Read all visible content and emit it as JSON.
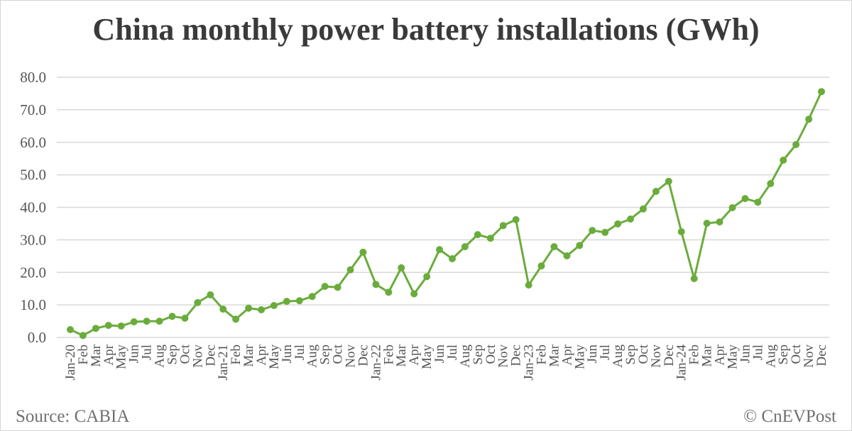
{
  "header": {
    "title": "China monthly power battery installations (GWh)"
  },
  "footer": {
    "source": "Source: CABIA",
    "copyright": "© CnEVPost"
  },
  "colors": {
    "line": "#6aac3c",
    "marker": "#6aac3c",
    "grid": "#d9d9d9",
    "text": "#555555",
    "title": "#3a3a3a"
  },
  "chart_data": {
    "type": "line",
    "title": "China monthly power battery installations (GWh)",
    "xlabel": "",
    "ylabel": "",
    "ylim": [
      0,
      80
    ],
    "yticks": [
      "0.0",
      "10.0",
      "20.0",
      "30.0",
      "40.0",
      "50.0",
      "60.0",
      "70.0",
      "80.0"
    ],
    "grid": true,
    "legend": null,
    "categories": [
      "Jan-20",
      "Feb",
      "Mar",
      "Apr",
      "May",
      "Jun",
      "Jul",
      "Aug",
      "Sep",
      "Oct",
      "Nov",
      "Dec",
      "Jan-21",
      "Feb",
      "Mar",
      "Apr",
      "May",
      "Jun",
      "Jul",
      "Aug",
      "Sep",
      "Oct",
      "Nov",
      "Dec",
      "Jan-22",
      "Feb",
      "Mar",
      "Apr",
      "May",
      "Jun",
      "Jul",
      "Aug",
      "Sep",
      "Oct",
      "Nov",
      "Dec",
      "Jan-23",
      "Feb",
      "Mar",
      "Apr",
      "May",
      "Jun",
      "Jul",
      "Aug",
      "Sep",
      "Oct",
      "Nov",
      "Dec",
      "Jan-24",
      "Feb",
      "Mar",
      "Apr",
      "May",
      "Jun",
      "Jul",
      "Aug",
      "Sep",
      "Oct",
      "Nov",
      "Dec"
    ],
    "series": [
      {
        "name": "Power battery installations (GWh)",
        "values": [
          2.4,
          0.6,
          2.8,
          3.7,
          3.5,
          4.8,
          5.0,
          5.0,
          6.5,
          5.9,
          10.7,
          13.1,
          8.7,
          5.6,
          9.0,
          8.5,
          9.8,
          11.1,
          11.3,
          12.6,
          15.7,
          15.4,
          20.8,
          26.2,
          16.3,
          13.9,
          21.4,
          13.4,
          18.7,
          27.0,
          24.2,
          27.9,
          31.6,
          30.5,
          34.4,
          36.2,
          16.1,
          22.0,
          27.9,
          25.1,
          28.3,
          32.9,
          32.3,
          34.9,
          36.4,
          39.5,
          44.9,
          48.0,
          32.5,
          18.1,
          35.1,
          35.5,
          39.9,
          42.7,
          41.6,
          47.3,
          54.5,
          59.3,
          67.1,
          75.6
        ]
      }
    ]
  }
}
